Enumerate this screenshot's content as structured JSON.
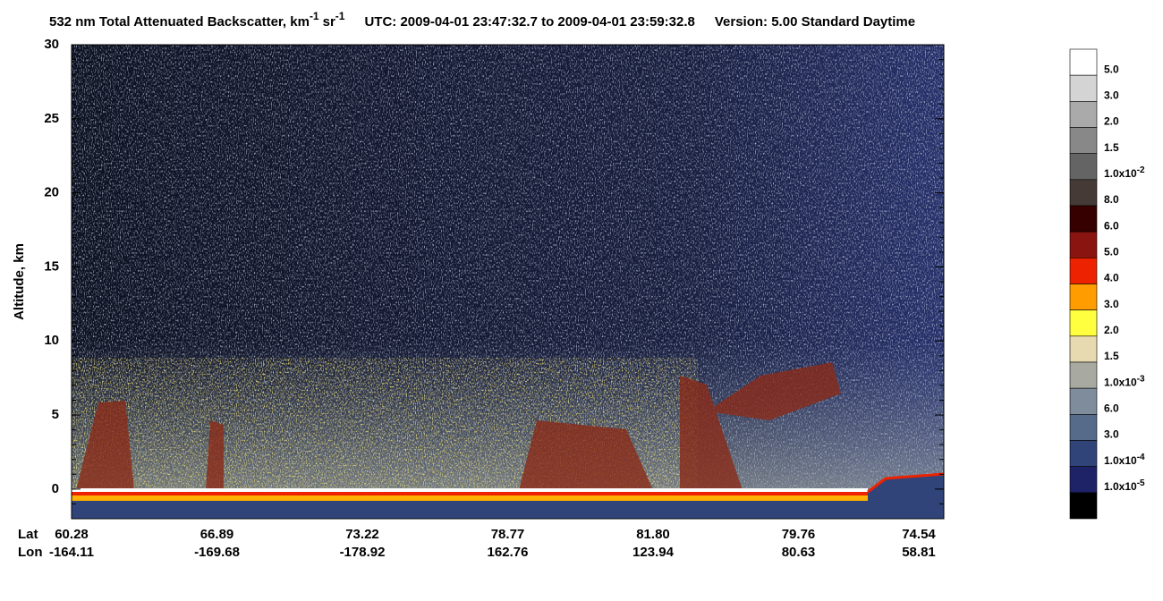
{
  "chart_data": {
    "type": "curtain",
    "title": {
      "prefix": "532 nm Total Attenuated Backscatter, km",
      "sup1": "-1",
      "mid": "sr",
      "sup2": "-1",
      "utc": "UTC:  2009-04-01 23:47:32.7  to  2009-04-01 23:59:32.8",
      "version": "Version: 5.00  Standard  Daytime"
    },
    "y_label": "Altitude, km",
    "ylim": [
      -2,
      30
    ],
    "yticks": [
      0,
      5,
      10,
      15,
      20,
      25,
      30
    ],
    "lat_label": "Lat",
    "lon_label": "Lon",
    "x_ticks": [
      {
        "lat": "60.28",
        "lon": "-164.11"
      },
      {
        "lat": "66.89",
        "lon": "-169.68"
      },
      {
        "lat": "73.22",
        "lon": "-178.92"
      },
      {
        "lat": "78.77",
        "lon": "162.76"
      },
      {
        "lat": "81.80",
        "lon": "123.94"
      },
      {
        "lat": "79.76",
        "lon": "80.63"
      },
      {
        "lat": "74.54",
        "lon": "58.81"
      }
    ],
    "colorbar": {
      "colors": [
        "#ffffff",
        "#d4d4d4",
        "#aaaaaa",
        "#888888",
        "#646464",
        "#463a36",
        "#360000",
        "#8a1410",
        "#ec2200",
        "#ff9c00",
        "#ffff40",
        "#e8dab0",
        "#a8aaa2",
        "#7e8c9c",
        "#566a8a",
        "#30447a",
        "#1e2266",
        "#000000"
      ],
      "labels": [
        {
          "text": "5.0"
        },
        {
          "text": "3.0"
        },
        {
          "text": "2.0"
        },
        {
          "text": "1.5"
        },
        {
          "text": "1.0x10",
          "exp": "-2"
        },
        {
          "text": "8.0"
        },
        {
          "text": "6.0"
        },
        {
          "text": "5.0"
        },
        {
          "text": "4.0"
        },
        {
          "text": "3.0"
        },
        {
          "text": "2.0"
        },
        {
          "text": "1.5"
        },
        {
          "text": "1.0x10",
          "exp": "-3"
        },
        {
          "text": "6.0"
        },
        {
          "text": "3.0"
        },
        {
          "text": "1.0x10",
          "exp": "-4"
        },
        {
          "text": "1.0x10",
          "exp": "-5"
        }
      ]
    }
  }
}
